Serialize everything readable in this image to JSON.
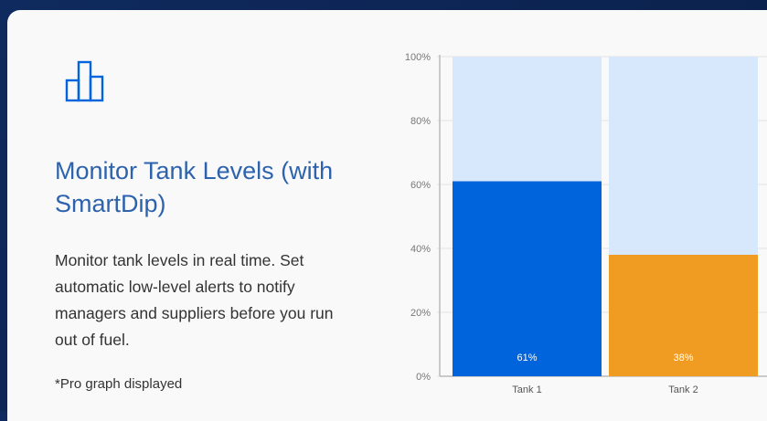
{
  "card": {
    "title": "Monitor Tank Levels (with SmartDip)",
    "description": "Monitor tank levels in real time. Set automatic low-level alerts to notify managers and suppliers before you run out of fuel.",
    "note": "*Pro graph displayed",
    "icon": "bar-chart-icon"
  },
  "colors": {
    "accent": "#0064dd",
    "tank2": "#f09c22",
    "remaining": "#d8e8fc",
    "title": "#2d62ad"
  },
  "chart_data": {
    "type": "bar",
    "stacked": true,
    "categories": [
      "Tank 1",
      "Tank 2"
    ],
    "series": [
      {
        "values": [
          61,
          38
        ],
        "colors": [
          "#0064dd",
          "#f09c22"
        ],
        "labels": [
          "61%",
          "38%"
        ]
      },
      {
        "values": [
          39,
          62
        ],
        "color": "#d8e8fc"
      }
    ],
    "ylim": [
      0,
      100
    ],
    "yticks": [
      "0%",
      "20%",
      "40%",
      "60%",
      "80%",
      "100%"
    ],
    "grid": true
  }
}
